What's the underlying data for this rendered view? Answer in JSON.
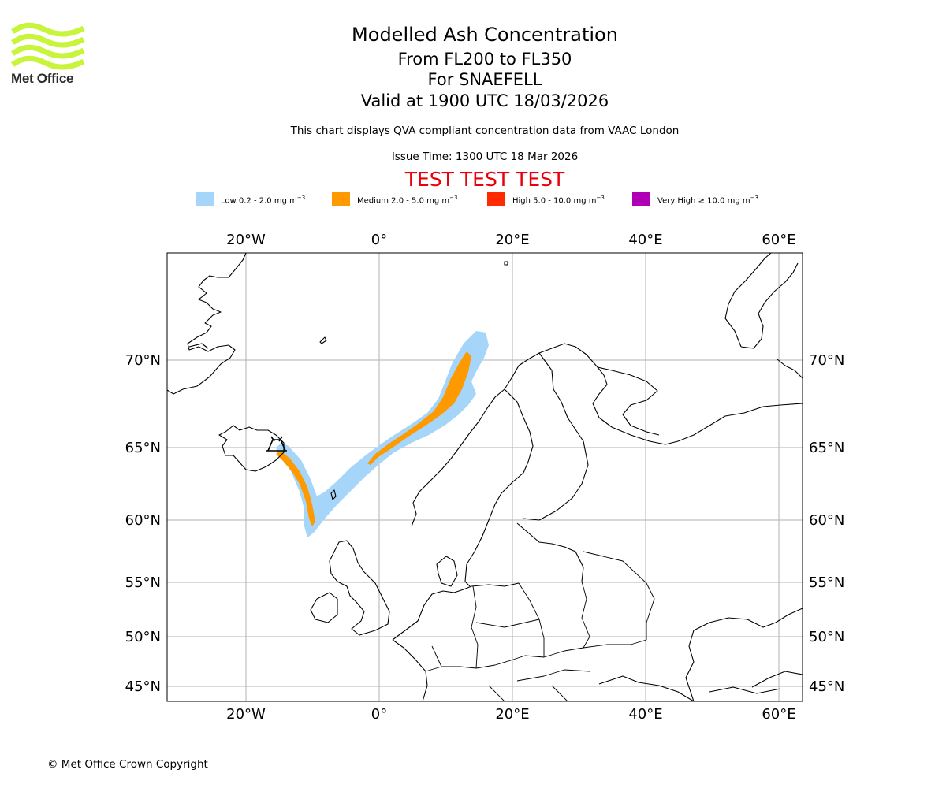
{
  "header": {
    "logo_text": "Met Office",
    "title": "Modelled Ash Concentration",
    "levels": "From FL200 to FL350",
    "volcano": "For SNAEFELL",
    "valid": "Valid at 1900 UTC 18/03/2026",
    "subtitle": "This chart displays QVA compliant concentration data from VAAC London",
    "issue_time": "Issue Time: 1300 UTC 18 Mar 2026",
    "test_banner": "TEST TEST TEST",
    "test_color": "#e8000b"
  },
  "legend": [
    {
      "label": "Low 0.2 - 2.0 mg m",
      "exponent": "−3",
      "color": "#a6d5fa"
    },
    {
      "label": "Medium 2.0 - 5.0 mg m",
      "exponent": "−3",
      "color": "#ff9900"
    },
    {
      "label": "High 5.0 - 10.0 mg m",
      "exponent": "−3",
      "color": "#ff2a00"
    },
    {
      "label": "Very High  ≥  10.0 mg m",
      "exponent": "−3",
      "color": "#b000b5"
    }
  ],
  "map": {
    "lon_labels": [
      "20°W",
      "0°",
      "20°E",
      "40°E",
      "60°E"
    ],
    "lat_labels": [
      "70°N",
      "65°N",
      "60°N",
      "55°N",
      "50°N",
      "45°N"
    ],
    "volcano_symbol": "volcano-icon"
  },
  "footer": {
    "copyright": "© Met Office Crown Copyright"
  }
}
